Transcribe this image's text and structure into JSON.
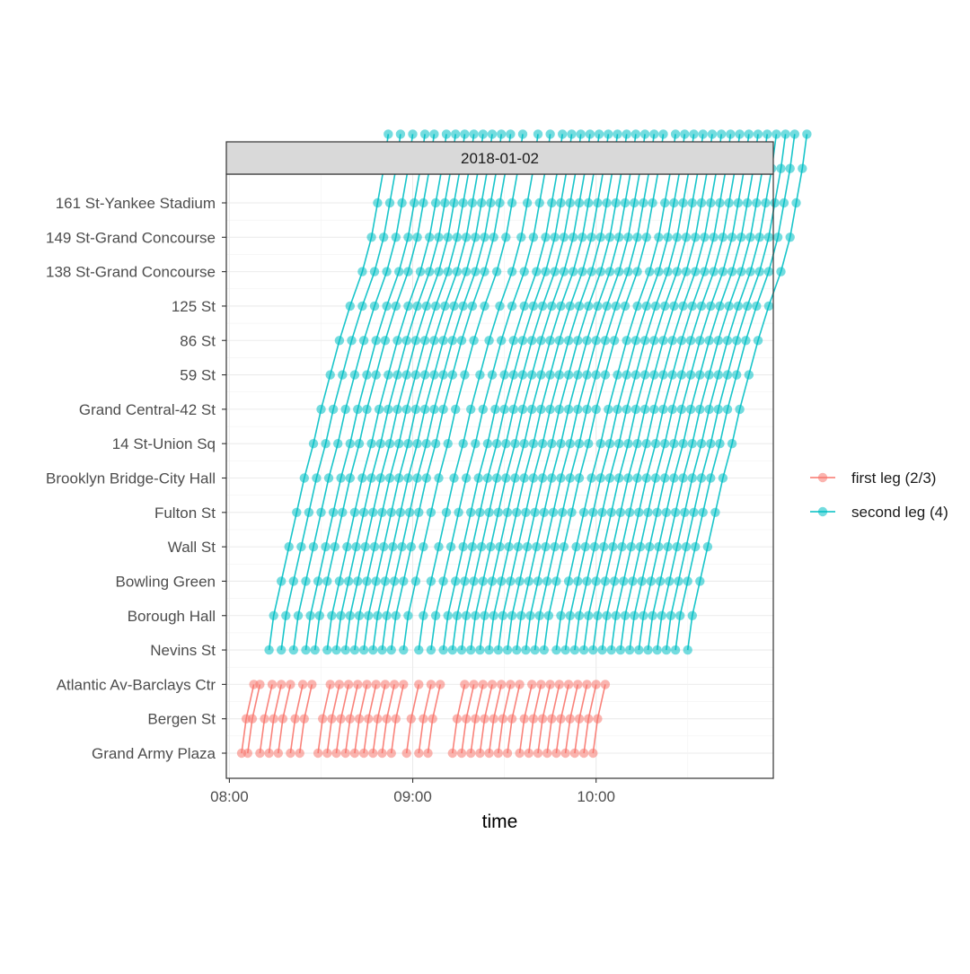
{
  "chart_data": {
    "type": "line",
    "facet": "2018-01-02",
    "xlabel": "time",
    "ylabel": "",
    "x_ticks": [
      "08:00",
      "09:00",
      "10:00"
    ],
    "x_range": [
      "07:59",
      "10:58"
    ],
    "grid": true,
    "legend_position": "right",
    "stations": [
      "Grand Army Plaza",
      "Bergen St",
      "Atlantic Av-Barclays Ctr",
      "Nevins St",
      "Borough Hall",
      "Bowling Green",
      "Wall St",
      "Fulton St",
      "Brooklyn Bridge-City Hall",
      "14 St-Union Sq",
      "Grand Central-42 St",
      "59 St",
      "86 St",
      "125 St",
      "138 St-Grand Concourse",
      "149 St-Grand Concourse",
      "161 St-Yankee Stadium"
    ],
    "series": [
      {
        "name": "first leg (2/3)",
        "color": "#F8766D",
        "station_range": [
          "Grand Army Plaza",
          "Nevins St"
        ],
        "trip_offsets_min": [
          1.5,
          2.5
        ],
        "trips_depart_grand_army_plaza": [
          "08:04",
          "08:06",
          "08:10",
          "08:13",
          "08:16",
          "08:20",
          "08:23",
          "08:29",
          "08:32",
          "08:35",
          "08:38",
          "08:41",
          "08:44",
          "08:47",
          "08:50",
          "08:53",
          "08:58",
          "09:02",
          "09:05",
          "09:13",
          "09:16",
          "09:19",
          "09:22",
          "09:25",
          "09:28",
          "09:31",
          "09:35",
          "09:38",
          "09:41",
          "09:44",
          "09:47",
          "09:50",
          "09:53",
          "09:56",
          "09:59"
        ]
      },
      {
        "name": "second leg (4)",
        "color": "#00BFC4",
        "station_range": [
          "Nevins St",
          "161 St-Yankee Stadium"
        ],
        "trip_offsets_min": [
          1.5,
          2.5,
          2.5,
          2.5,
          2.5,
          3,
          2.5,
          3,
          3,
          3.5,
          4,
          3,
          2,
          2,
          1.5
        ],
        "trips_depart_nevins_st": [
          "08:13",
          "08:17",
          "08:21",
          "08:25",
          "08:28",
          "08:32",
          "08:35",
          "08:38",
          "08:41",
          "08:44",
          "08:47",
          "08:50",
          "08:53",
          "08:57",
          "09:02",
          "09:06",
          "09:10",
          "09:13",
          "09:16",
          "09:19",
          "09:22",
          "09:25",
          "09:28",
          "09:31",
          "09:34",
          "09:37",
          "09:40",
          "09:43",
          "09:47",
          "09:50",
          "09:53",
          "09:56",
          "09:59",
          "10:02",
          "10:05",
          "10:08",
          "10:11",
          "10:14",
          "10:17",
          "10:20",
          "10:23",
          "10:26",
          "10:30"
        ]
      }
    ]
  }
}
